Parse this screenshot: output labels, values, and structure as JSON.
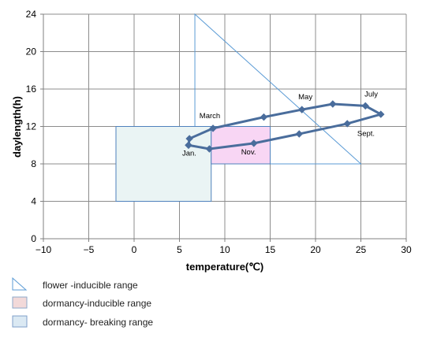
{
  "chart_data": {
    "type": "line",
    "xlabel": "temperature(℃)",
    "ylabel": "daylength(h)",
    "xlim": [
      -10,
      30
    ],
    "ylim": [
      0,
      24
    ],
    "x_ticks": [
      -10,
      -5,
      0,
      5,
      10,
      15,
      20,
      25,
      30
    ],
    "y_ticks": [
      0,
      4,
      8,
      12,
      16,
      20,
      24
    ],
    "x_tick_labels": [
      "−10",
      "−5",
      "0",
      "5",
      "10",
      "15",
      "20",
      "25",
      "30"
    ],
    "y_tick_labels": [
      "0",
      "4",
      "8",
      "12",
      "16",
      "20",
      "24"
    ],
    "grid": true,
    "series": [
      {
        "color": "#4a6d9c",
        "points": [
          {
            "x": 6.0,
            "y": 10.0
          },
          {
            "x": 6.1,
            "y": 10.7
          },
          {
            "x": 8.7,
            "y": 11.8
          },
          {
            "x": 14.3,
            "y": 13.0
          },
          {
            "x": 18.5,
            "y": 13.8
          },
          {
            "x": 21.9,
            "y": 14.4
          },
          {
            "x": 25.5,
            "y": 14.2
          },
          {
            "x": 27.2,
            "y": 13.3
          },
          {
            "x": 23.5,
            "y": 12.3
          },
          {
            "x": 18.2,
            "y": 11.2
          },
          {
            "x": 13.2,
            "y": 10.2
          },
          {
            "x": 8.3,
            "y": 9.6
          },
          {
            "x": 6.0,
            "y": 10.0
          }
        ]
      }
    ],
    "annotations": [
      {
        "text": "March",
        "x": 7.2,
        "y": 12.9
      },
      {
        "text": "May",
        "x": 18.1,
        "y": 14.9
      },
      {
        "text": "July",
        "x": 25.4,
        "y": 15.2
      },
      {
        "text": "Sept.",
        "x": 24.6,
        "y": 11.0
      },
      {
        "text": "Jan.",
        "x": 5.3,
        "y": 8.9
      },
      {
        "text": "Nov.",
        "x": 11.8,
        "y": 9.0
      }
    ],
    "regions": [
      {
        "shape": "triangle",
        "vertices": [
          [
            6.7,
            24
          ],
          [
            6.7,
            8
          ],
          [
            25,
            8
          ]
        ],
        "fill": "#ffffff",
        "stroke": "#5b9bd5"
      },
      {
        "shape": "rect",
        "x0": -2,
        "x1": 8.5,
        "y0": 4,
        "y1": 12,
        "fill": "#eaf4f4",
        "stroke": "#4f81bd"
      },
      {
        "shape": "rect",
        "x0": 8.5,
        "x1": 15,
        "y0": 8,
        "y1": 12,
        "fill": "#f8d6f4",
        "stroke": "#4f81bd"
      }
    ],
    "legend": [
      {
        "label": "flower -inducible range",
        "shape": "triangle",
        "fill": "#ffffff",
        "stroke": "#5b9bd5"
      },
      {
        "label": "dormancy-inducible range",
        "shape": "rect",
        "fill": "#f2d9d9",
        "stroke": "#8ea9c9"
      },
      {
        "label": "dormancy- breaking range",
        "shape": "rect",
        "fill": "#dbe9f3",
        "stroke": "#7f9fc8"
      }
    ]
  }
}
